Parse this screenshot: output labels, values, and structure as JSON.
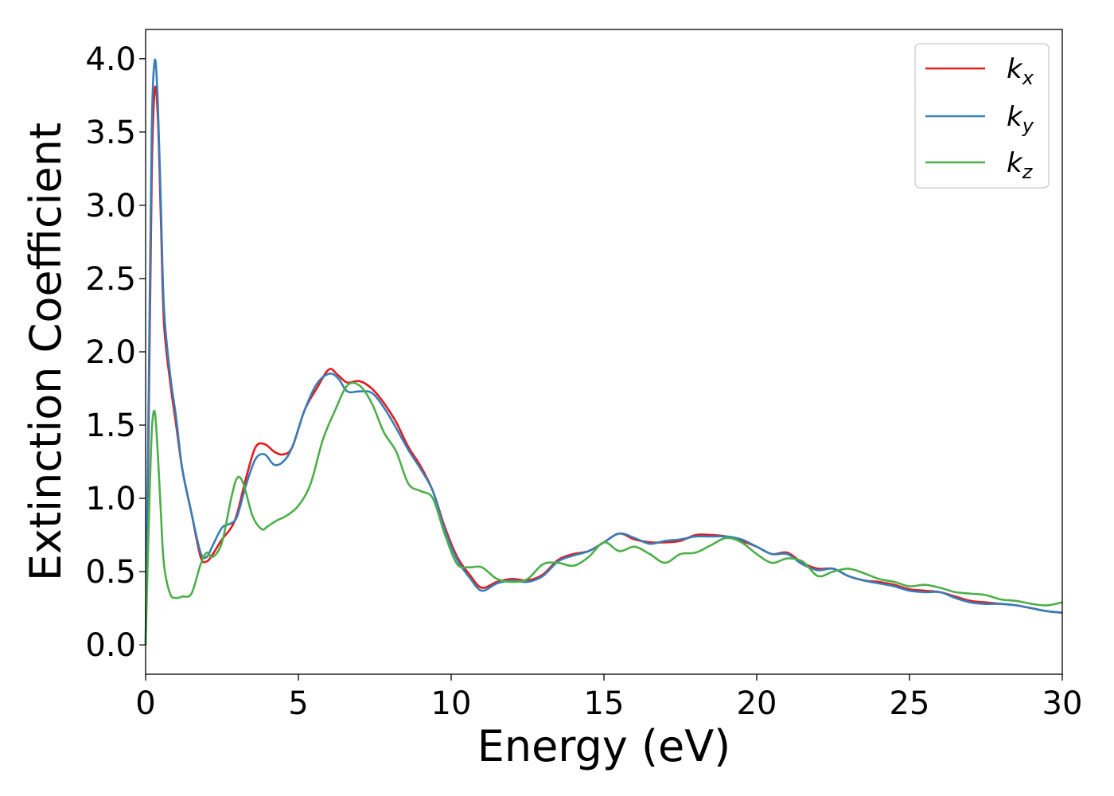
{
  "chart_data": {
    "type": "line",
    "title": "",
    "xlabel": "Energy (eV)",
    "ylabel": "Extinction Coefficient",
    "xlim": [
      0,
      30
    ],
    "ylim": [
      -0.2,
      4.2
    ],
    "xticks": [
      0,
      5,
      10,
      15,
      20,
      25,
      30
    ],
    "yticks": [
      0.0,
      0.5,
      1.0,
      1.5,
      2.0,
      2.5,
      3.0,
      3.5,
      4.0
    ],
    "xtick_labels": [
      "0",
      "5",
      "10",
      "15",
      "20",
      "25",
      "30"
    ],
    "ytick_labels": [
      "0.0",
      "0.5",
      "1.0",
      "1.5",
      "2.0",
      "2.5",
      "3.0",
      "3.5",
      "4.0"
    ],
    "grid": false,
    "legend_position": "top-right",
    "series": [
      {
        "name": "k_x",
        "label_base": "k",
        "label_sub": "x",
        "color": "#e41a1c",
        "x": [
          0,
          0.1,
          0.2,
          0.3,
          0.4,
          0.5,
          0.6,
          0.8,
          1.0,
          1.2,
          1.5,
          1.8,
          2.0,
          2.2,
          2.5,
          2.8,
          3.0,
          3.3,
          3.6,
          3.9,
          4.2,
          4.5,
          4.8,
          5.2,
          5.6,
          6.0,
          6.3,
          6.6,
          7.0,
          7.4,
          7.8,
          8.2,
          8.6,
          9.0,
          9.4,
          9.8,
          10.2,
          10.6,
          11.0,
          11.5,
          12.0,
          12.5,
          13.0,
          13.5,
          14.0,
          14.5,
          15.0,
          15.5,
          16.0,
          16.5,
          17.0,
          17.5,
          18.0,
          18.5,
          19.0,
          19.5,
          20.0,
          20.5,
          21.0,
          21.5,
          22.0,
          22.5,
          23.0,
          23.5,
          24.0,
          24.5,
          25.0,
          25.5,
          26.0,
          26.5,
          27.0,
          27.5,
          28.0,
          28.5,
          29.0,
          29.5,
          30.0
        ],
        "y": [
          0.0,
          1.5,
          3.2,
          3.79,
          3.6,
          2.9,
          2.2,
          1.8,
          1.5,
          1.2,
          0.9,
          0.6,
          0.57,
          0.62,
          0.72,
          0.8,
          0.9,
          1.15,
          1.35,
          1.37,
          1.32,
          1.3,
          1.35,
          1.6,
          1.75,
          1.88,
          1.84,
          1.79,
          1.8,
          1.75,
          1.65,
          1.52,
          1.35,
          1.22,
          1.05,
          0.8,
          0.6,
          0.48,
          0.39,
          0.43,
          0.45,
          0.44,
          0.48,
          0.58,
          0.62,
          0.64,
          0.7,
          0.76,
          0.72,
          0.7,
          0.7,
          0.71,
          0.75,
          0.75,
          0.74,
          0.71,
          0.67,
          0.62,
          0.63,
          0.56,
          0.52,
          0.52,
          0.47,
          0.44,
          0.43,
          0.41,
          0.38,
          0.37,
          0.36,
          0.33,
          0.3,
          0.29,
          0.28,
          0.27,
          0.25,
          0.23,
          0.22
        ]
      },
      {
        "name": "k_y",
        "label_base": "k",
        "label_sub": "y",
        "color": "#377eb8",
        "x": [
          0,
          0.1,
          0.2,
          0.3,
          0.4,
          0.5,
          0.6,
          0.8,
          1.0,
          1.2,
          1.5,
          1.8,
          2.0,
          2.2,
          2.5,
          2.8,
          3.0,
          3.3,
          3.6,
          3.9,
          4.2,
          4.5,
          4.8,
          5.2,
          5.6,
          6.0,
          6.3,
          6.6,
          7.0,
          7.4,
          7.8,
          8.2,
          8.6,
          9.0,
          9.4,
          9.8,
          10.2,
          10.6,
          11.0,
          11.5,
          12.0,
          12.5,
          13.0,
          13.5,
          14.0,
          14.5,
          15.0,
          15.5,
          16.0,
          16.5,
          17.0,
          17.5,
          18.0,
          18.5,
          19.0,
          19.5,
          20.0,
          20.5,
          21.0,
          21.5,
          22.0,
          22.5,
          23.0,
          23.5,
          24.0,
          24.5,
          25.0,
          25.5,
          26.0,
          26.5,
          27.0,
          27.5,
          28.0,
          28.5,
          29.0,
          29.5,
          30.0
        ],
        "y": [
          0.0,
          1.7,
          3.5,
          3.99,
          3.7,
          3.0,
          2.3,
          1.85,
          1.55,
          1.2,
          0.9,
          0.63,
          0.6,
          0.68,
          0.8,
          0.83,
          0.88,
          1.1,
          1.27,
          1.3,
          1.23,
          1.25,
          1.35,
          1.6,
          1.78,
          1.85,
          1.82,
          1.73,
          1.73,
          1.72,
          1.62,
          1.48,
          1.33,
          1.2,
          1.05,
          0.78,
          0.58,
          0.46,
          0.37,
          0.42,
          0.44,
          0.43,
          0.47,
          0.57,
          0.61,
          0.64,
          0.7,
          0.76,
          0.73,
          0.69,
          0.71,
          0.72,
          0.74,
          0.74,
          0.74,
          0.72,
          0.67,
          0.62,
          0.62,
          0.55,
          0.51,
          0.52,
          0.47,
          0.44,
          0.42,
          0.4,
          0.37,
          0.36,
          0.36,
          0.32,
          0.29,
          0.28,
          0.28,
          0.27,
          0.25,
          0.23,
          0.22
        ]
      },
      {
        "name": "k_z",
        "label_base": "k",
        "label_sub": "z",
        "color": "#4daf4a",
        "x": [
          0,
          0.1,
          0.2,
          0.3,
          0.4,
          0.5,
          0.6,
          0.8,
          1.0,
          1.2,
          1.5,
          1.8,
          2.0,
          2.2,
          2.5,
          2.8,
          3.0,
          3.2,
          3.5,
          3.8,
          4.0,
          4.3,
          4.6,
          5.0,
          5.4,
          5.8,
          6.2,
          6.6,
          7.0,
          7.4,
          7.8,
          8.2,
          8.6,
          9.0,
          9.4,
          9.8,
          10.2,
          10.6,
          11.0,
          11.5,
          12.0,
          12.5,
          13.0,
          13.5,
          14.0,
          14.5,
          15.0,
          15.5,
          16.0,
          16.5,
          17.0,
          17.5,
          18.0,
          18.5,
          19.0,
          19.5,
          20.0,
          20.5,
          21.0,
          21.5,
          22.0,
          22.5,
          23.0,
          23.5,
          24.0,
          24.5,
          25.0,
          25.5,
          26.0,
          26.5,
          27.0,
          27.5,
          28.0,
          28.5,
          29.0,
          29.5,
          30.0
        ],
        "y": [
          0.0,
          0.8,
          1.45,
          1.59,
          1.3,
          0.9,
          0.55,
          0.35,
          0.32,
          0.33,
          0.35,
          0.55,
          0.63,
          0.6,
          0.7,
          1.0,
          1.14,
          1.1,
          0.88,
          0.79,
          0.81,
          0.85,
          0.88,
          0.95,
          1.1,
          1.4,
          1.6,
          1.77,
          1.77,
          1.65,
          1.45,
          1.32,
          1.1,
          1.05,
          1.0,
          0.75,
          0.55,
          0.53,
          0.53,
          0.45,
          0.43,
          0.45,
          0.55,
          0.56,
          0.54,
          0.6,
          0.7,
          0.64,
          0.67,
          0.62,
          0.56,
          0.62,
          0.63,
          0.68,
          0.73,
          0.7,
          0.62,
          0.56,
          0.59,
          0.57,
          0.47,
          0.5,
          0.52,
          0.49,
          0.45,
          0.43,
          0.4,
          0.41,
          0.39,
          0.36,
          0.35,
          0.34,
          0.31,
          0.3,
          0.28,
          0.27,
          0.29
        ]
      }
    ]
  }
}
